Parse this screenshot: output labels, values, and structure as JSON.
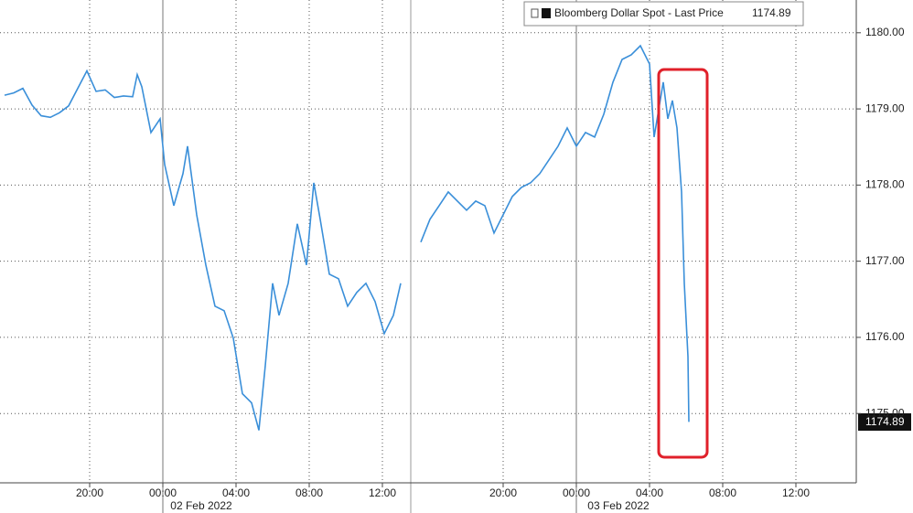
{
  "chart_data": {
    "type": "line",
    "series": [
      {
        "name": "Bloomberg Dollar Spot - Last Price",
        "color": "#3a8fd9",
        "x": [
          -8.65,
          -8.15,
          -7.65,
          -7.15,
          -6.65,
          -6.15,
          -5.65,
          -5.15,
          -4.65,
          -4.15,
          -3.65,
          -3.15,
          -2.65,
          -2.15,
          -1.65,
          -1.4,
          -1.15,
          -0.65,
          -0.15,
          0.1,
          0.6,
          1.1,
          1.35,
          1.85,
          2.35,
          2.85,
          3.35,
          3.85,
          4.35,
          4.85,
          5.25,
          5.6,
          6,
          6.35,
          6.85,
          7.35,
          7.85,
          8.25,
          8.6,
          9.1,
          9.6,
          10.1,
          10.6,
          11.1,
          11.6,
          12.1,
          12.6,
          13,
          14.25,
          15.5,
          16,
          16.5,
          17,
          17.5,
          18,
          18.5,
          19,
          19.5,
          20,
          20.5,
          21,
          21.5,
          22,
          22.5,
          23,
          23.5,
          24,
          24.5,
          25,
          25.5,
          26,
          26.5,
          27,
          27.5,
          28,
          28.25,
          28.5,
          28.75,
          29,
          29.25,
          29.5,
          29.75,
          29.9,
          30.1,
          30.15
        ],
        "values": [
          1179.18,
          1179.21,
          1179.27,
          1179.05,
          1178.91,
          1178.89,
          1178.95,
          1179.04,
          1179.27,
          1179.5,
          1179.23,
          1179.25,
          1179.15,
          1179.17,
          1179.16,
          1179.45,
          1179.29,
          1178.69,
          1178.87,
          1178.27,
          1177.73,
          1178.15,
          1178.51,
          1177.61,
          1176.95,
          1176.41,
          1176.35,
          1175.99,
          1175.26,
          1175.14,
          1174.78,
          1175.63,
          1176.71,
          1176.29,
          1176.71,
          1177.49,
          1176.95,
          1178.03,
          1177.55,
          1176.83,
          1176.77,
          1176.41,
          1176.59,
          1176.71,
          1176.47,
          1176.05,
          1176.29,
          1176.71,
          null,
          1177.25,
          1177.55,
          1177.73,
          1177.91,
          1177.79,
          1177.67,
          1177.79,
          1177.73,
          1177.37,
          1177.61,
          1177.85,
          1177.97,
          1178.03,
          1178.15,
          1178.33,
          1178.51,
          1178.75,
          1178.51,
          1178.69,
          1178.63,
          1178.93,
          1179.35,
          1179.65,
          1179.71,
          1179.83,
          1179.59,
          1178.63,
          1178.99,
          1179.35,
          1178.87,
          1179.11,
          1178.75,
          1177.91,
          1176.71,
          1175.75,
          1174.89
        ]
      }
    ],
    "xlim": [
      -8.9,
      39.3
    ],
    "xbreaks": [
      [
        13.5,
        15
      ]
    ],
    "xticks": [
      {
        "value": -4,
        "label": "20:00"
      },
      {
        "value": 0,
        "label": "00:00"
      },
      {
        "value": 4,
        "label": "04:00"
      },
      {
        "value": 8,
        "label": "08:00"
      },
      {
        "value": 12,
        "label": "12:00"
      },
      {
        "value": 20,
        "label": "20:00"
      },
      {
        "value": 24,
        "label": "00:00"
      },
      {
        "value": 28,
        "label": "04:00"
      },
      {
        "value": 32,
        "label": "08:00"
      },
      {
        "value": 36,
        "label": "12:00"
      }
    ],
    "x_date_labels": [
      "02 Feb 2022",
      "03 Feb 2022"
    ],
    "ylim": [
      1174.09,
      1180.43
    ],
    "yticks": [
      {
        "value": 1175,
        "label": "1175.00"
      },
      {
        "value": 1176,
        "label": "1176.00"
      },
      {
        "value": 1177,
        "label": "1177.00"
      },
      {
        "value": 1178,
        "label": "1178.00"
      },
      {
        "value": 1179,
        "label": "1179.00"
      },
      {
        "value": 1180,
        "label": "1180.00"
      }
    ],
    "grid": true
  }
}
